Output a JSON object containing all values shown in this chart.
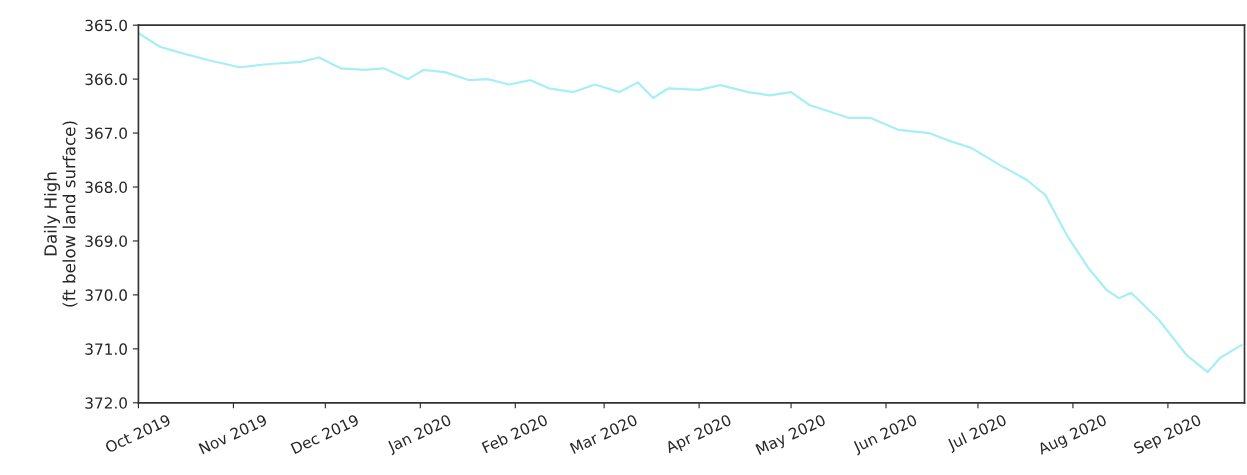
{
  "chart_data": {
    "type": "line",
    "ylabel": "Daily High\n(ft below land surface)",
    "x": [
      "2019-10-01",
      "2019-10-08",
      "2019-10-14",
      "2019-10-24",
      "2019-11-03",
      "2019-11-13",
      "2019-11-23",
      "2019-11-29",
      "2019-12-06",
      "2019-12-14",
      "2019-12-20",
      "2019-12-28",
      "2020-01-02",
      "2020-01-09",
      "2020-01-17",
      "2020-01-23",
      "2020-01-30",
      "2020-02-06",
      "2020-02-12",
      "2020-02-20",
      "2020-02-27",
      "2020-03-06",
      "2020-03-12",
      "2020-03-17",
      "2020-03-22",
      "2020-04-01",
      "2020-04-08",
      "2020-04-17",
      "2020-04-24",
      "2020-05-01",
      "2020-05-07",
      "2020-05-14",
      "2020-05-20",
      "2020-05-27",
      "2020-06-05",
      "2020-06-15",
      "2020-06-21",
      "2020-06-29",
      "2020-07-08",
      "2020-07-17",
      "2020-07-23",
      "2020-07-30",
      "2020-08-06",
      "2020-08-12",
      "2020-08-16",
      "2020-08-20",
      "2020-08-29",
      "2020-09-07",
      "2020-09-14",
      "2020-09-18",
      "2020-09-25"
    ],
    "series": [
      {
        "color": "#a8eef7",
        "values": [
          365.15,
          365.4,
          365.5,
          365.65,
          365.78,
          365.72,
          365.68,
          365.6,
          365.8,
          365.83,
          365.8,
          366.0,
          365.83,
          365.87,
          366.02,
          366.0,
          366.1,
          366.02,
          366.17,
          366.24,
          366.1,
          366.24,
          366.06,
          366.35,
          366.17,
          366.2,
          366.11,
          366.24,
          366.3,
          366.24,
          366.48,
          366.61,
          366.72,
          366.72,
          366.94,
          367.0,
          367.13,
          367.28,
          367.59,
          367.87,
          368.15,
          368.89,
          369.5,
          369.91,
          370.06,
          369.96,
          370.46,
          371.11,
          371.43,
          371.17,
          370.93
        ]
      }
    ],
    "xlim": [
      "2019-10-01",
      "2020-09-26"
    ],
    "xticks": [
      {
        "value": "2019-10-01",
        "label": "Oct 2019"
      },
      {
        "value": "2019-11-01",
        "label": "Nov 2019"
      },
      {
        "value": "2019-12-01",
        "label": "Dec 2019"
      },
      {
        "value": "2020-01-01",
        "label": "Jan 2020"
      },
      {
        "value": "2020-02-01",
        "label": "Feb 2020"
      },
      {
        "value": "2020-03-01",
        "label": "Mar 2020"
      },
      {
        "value": "2020-04-01",
        "label": "Apr 2020"
      },
      {
        "value": "2020-05-01",
        "label": "May 2020"
      },
      {
        "value": "2020-06-01",
        "label": "Jun 2020"
      },
      {
        "value": "2020-07-01",
        "label": "Jul 2020"
      },
      {
        "value": "2020-08-01",
        "label": "Aug 2020"
      },
      {
        "value": "2020-09-01",
        "label": "Sep 2020"
      }
    ],
    "ylim": [
      372,
      365
    ],
    "yticks": [
      {
        "value": 365,
        "label": "365.0"
      },
      {
        "value": 366,
        "label": "366.0"
      },
      {
        "value": 367,
        "label": "367.0"
      },
      {
        "value": 368,
        "label": "368.0"
      },
      {
        "value": 369,
        "label": "369.0"
      },
      {
        "value": 370,
        "label": "370.0"
      },
      {
        "value": 371,
        "label": "371.0"
      },
      {
        "value": 372,
        "label": "372.0"
      }
    ],
    "grid": false,
    "legend": false,
    "marker": "none",
    "line_style": "solid"
  }
}
